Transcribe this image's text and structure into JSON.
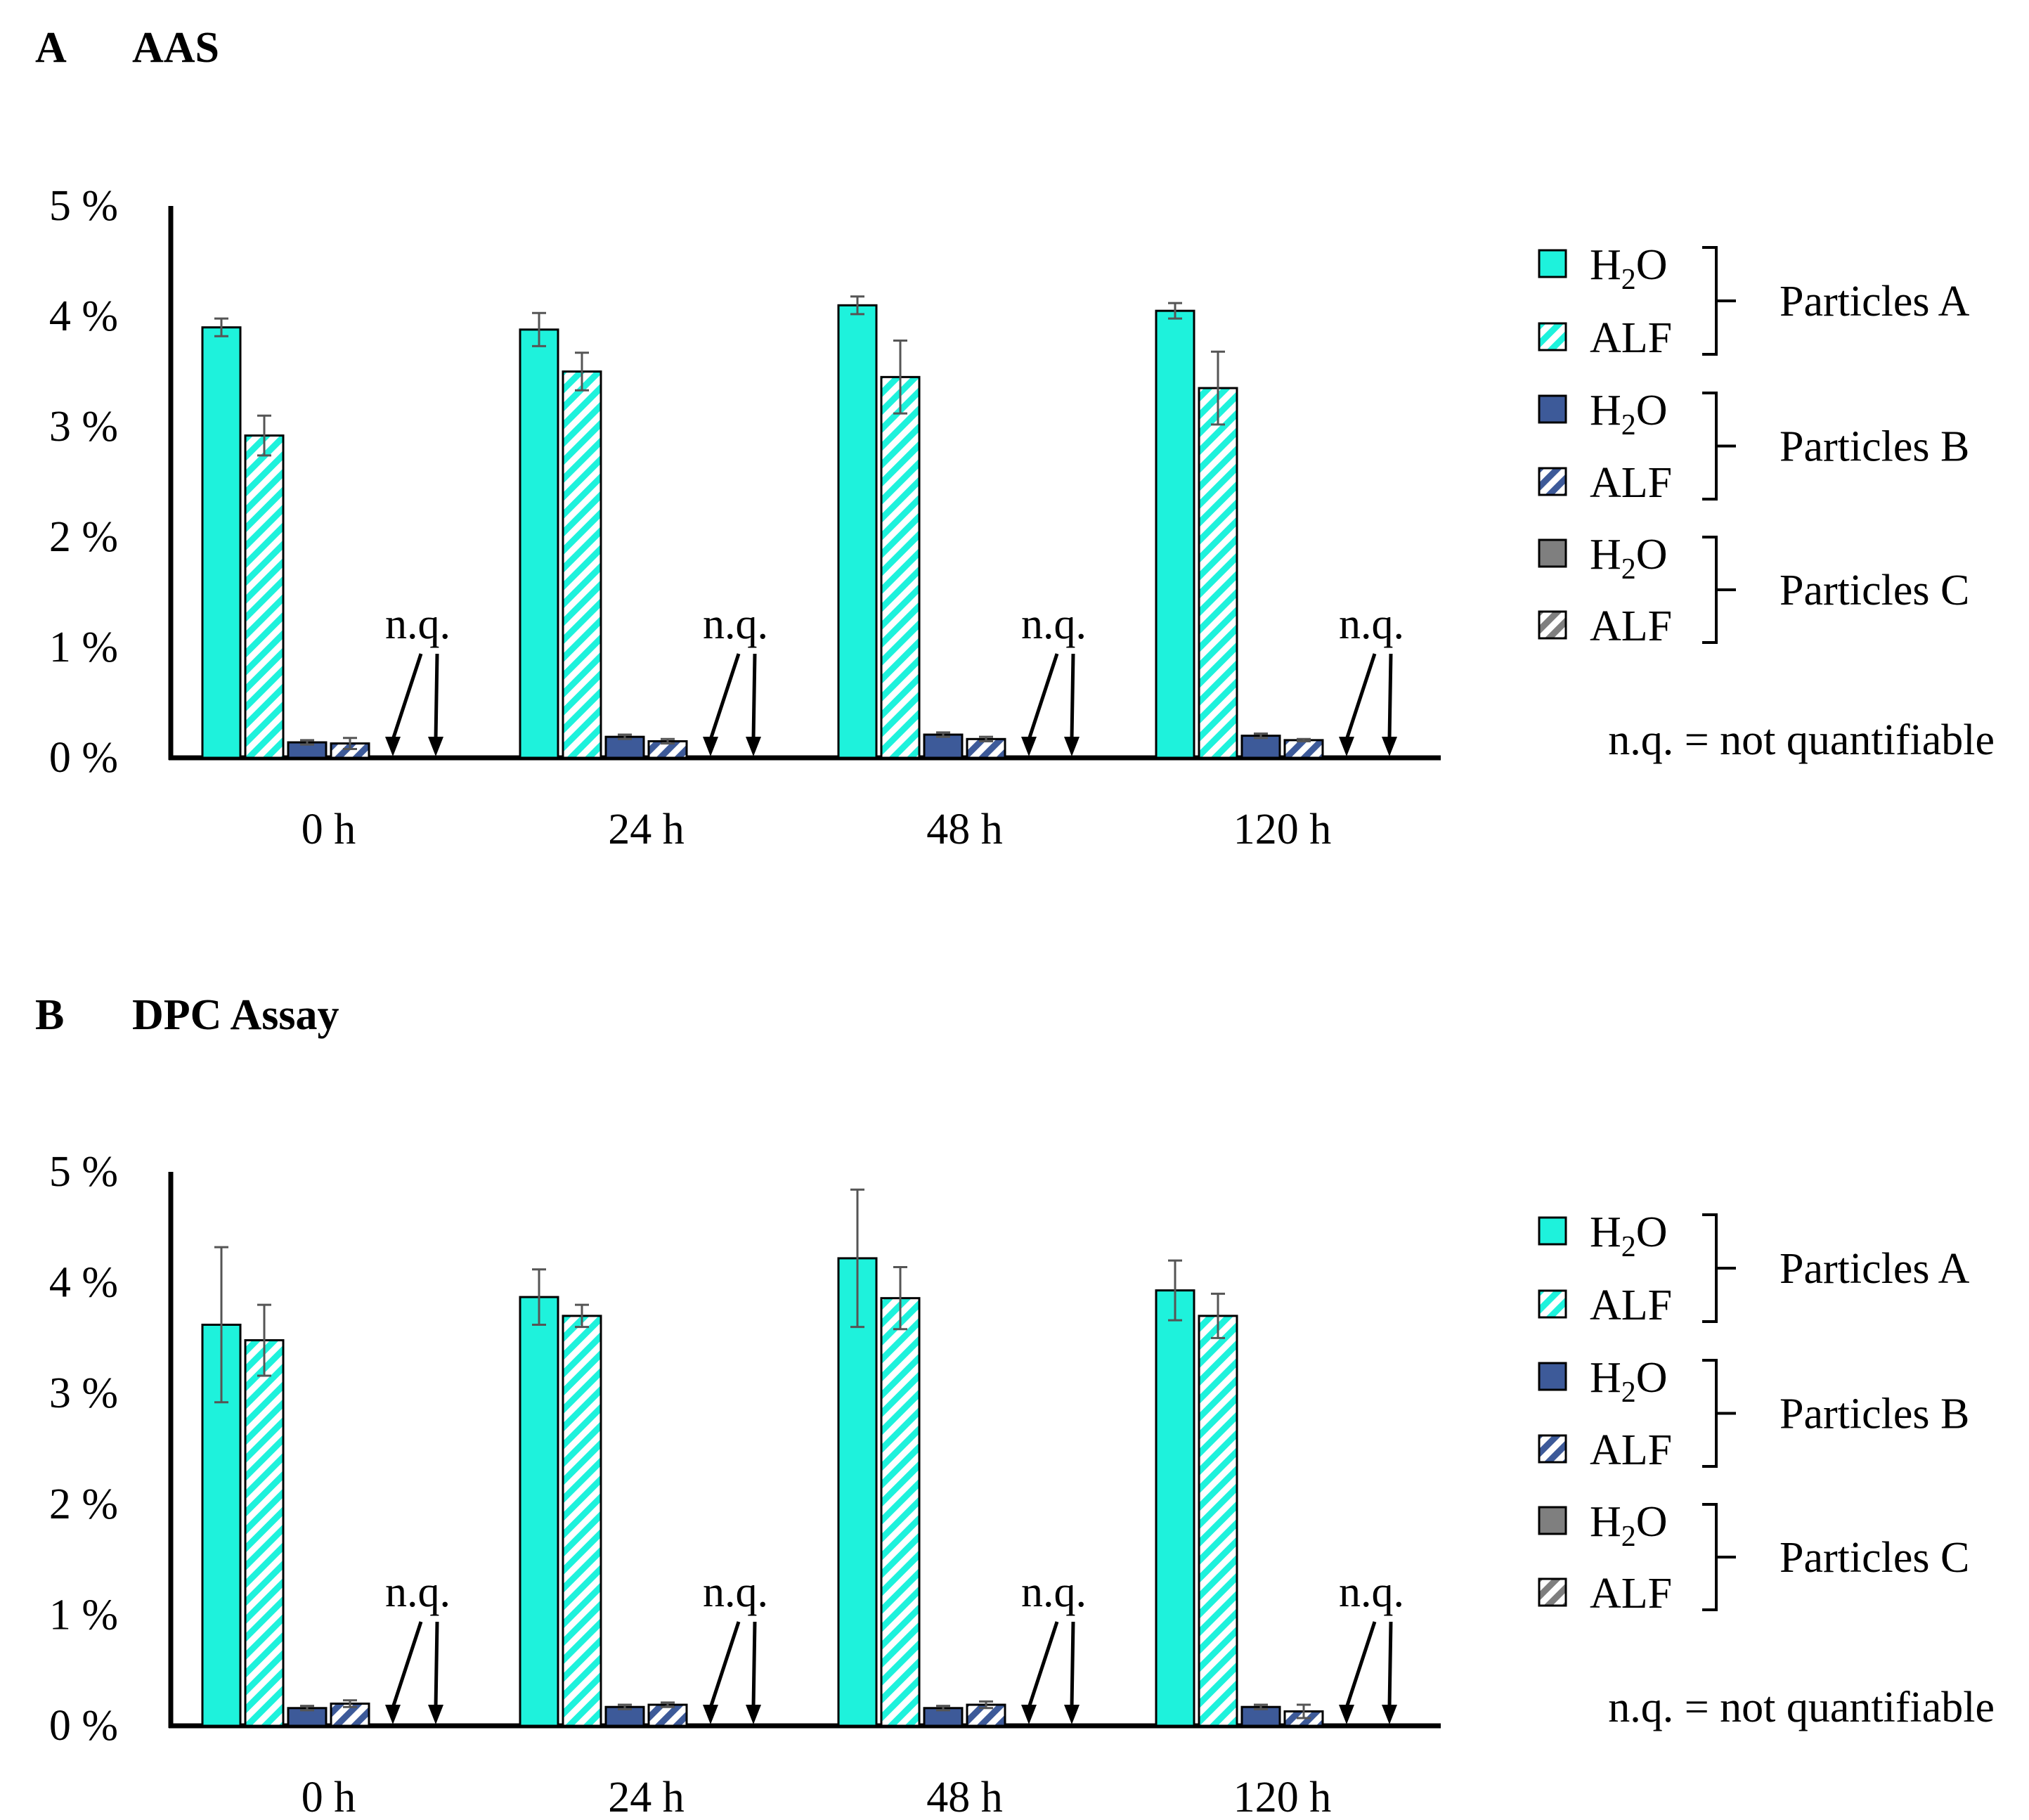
{
  "colors": {
    "particles_a": "#1ef2dc",
    "particles_b": "#3d5a99",
    "particles_c": "#7f7f7f",
    "axis": "#000000",
    "error_bar": "#555555"
  },
  "legend": {
    "items": [
      {
        "label": "H2O",
        "base": "H",
        "sub": "2",
        "tail": "O",
        "pattern": "solid",
        "color_key": "particles_a"
      },
      {
        "label": "ALF",
        "base": "ALF",
        "sub": "",
        "tail": "",
        "pattern": "hatch",
        "color_key": "particles_a"
      },
      {
        "label": "H2O",
        "base": "H",
        "sub": "2",
        "tail": "O",
        "pattern": "solid",
        "color_key": "particles_b"
      },
      {
        "label": "ALF",
        "base": "ALF",
        "sub": "",
        "tail": "",
        "pattern": "hatch",
        "color_key": "particles_b"
      },
      {
        "label": "H2O",
        "base": "H",
        "sub": "2",
        "tail": "O",
        "pattern": "solid",
        "color_key": "particles_c"
      },
      {
        "label": "ALF",
        "base": "ALF",
        "sub": "",
        "tail": "",
        "pattern": "hatch",
        "color_key": "particles_c"
      }
    ],
    "groups": [
      "Particles A",
      "Particles B",
      "Particles C"
    ],
    "note": "n.q. = not quantifiable"
  },
  "chart_data": [
    {
      "type": "bar",
      "panel_letter": "A",
      "title": "AAS",
      "categories": [
        "0 h",
        "24 h",
        "48 h",
        "120 h"
      ],
      "yticks": [
        "0 %",
        "1 %",
        "2 %",
        "3 %",
        "4 %",
        "5 %"
      ],
      "ylim": [
        0,
        5
      ],
      "nq_label": "n.q.",
      "series": [
        {
          "name": "Particles A H2O",
          "color_key": "particles_a",
          "pattern": "solid",
          "values": [
            3.9,
            3.88,
            4.1,
            4.05
          ],
          "errors": [
            0.08,
            0.15,
            0.08,
            0.07
          ]
        },
        {
          "name": "Particles A ALF",
          "color_key": "particles_a",
          "pattern": "hatch",
          "values": [
            2.92,
            3.5,
            3.45,
            3.35
          ],
          "errors": [
            0.18,
            0.17,
            0.33,
            0.33
          ]
        },
        {
          "name": "Particles B H2O",
          "color_key": "particles_b",
          "pattern": "solid",
          "values": [
            0.14,
            0.19,
            0.21,
            0.2
          ],
          "errors": [
            0.02,
            0.02,
            0.02,
            0.02
          ]
        },
        {
          "name": "Particles B ALF",
          "color_key": "particles_b",
          "pattern": "hatch",
          "values": [
            0.13,
            0.15,
            0.17,
            0.16
          ],
          "errors": [
            0.05,
            0.02,
            0.02,
            0.01
          ]
        },
        {
          "name": "Particles C H2O",
          "color_key": "particles_c",
          "pattern": "solid",
          "values": [
            null,
            null,
            null,
            null
          ],
          "errors": [
            null,
            null,
            null,
            null
          ]
        },
        {
          "name": "Particles C ALF",
          "color_key": "particles_c",
          "pattern": "hatch",
          "values": [
            null,
            null,
            null,
            null
          ],
          "errors": [
            null,
            null,
            null,
            null
          ]
        }
      ]
    },
    {
      "type": "bar",
      "panel_letter": "B",
      "title": "DPC Assay",
      "categories": [
        "0 h",
        "24 h",
        "48 h",
        "120 h"
      ],
      "yticks": [
        "0 %",
        "1 %",
        "2 %",
        "3 %",
        "4 %",
        "5 %"
      ],
      "ylim": [
        0,
        5
      ],
      "nq_label": "n.q.",
      "series": [
        {
          "name": "Particles A H2O",
          "color_key": "particles_a",
          "pattern": "solid",
          "values": [
            3.62,
            3.87,
            4.22,
            3.93
          ],
          "errors": [
            0.7,
            0.25,
            0.62,
            0.27
          ]
        },
        {
          "name": "Particles A ALF",
          "color_key": "particles_a",
          "pattern": "hatch",
          "values": [
            3.48,
            3.7,
            3.86,
            3.7
          ],
          "errors": [
            0.32,
            0.1,
            0.28,
            0.2
          ]
        },
        {
          "name": "Particles B H2O",
          "color_key": "particles_b",
          "pattern": "solid",
          "values": [
            0.16,
            0.17,
            0.16,
            0.17
          ],
          "errors": [
            0.02,
            0.02,
            0.02,
            0.02
          ]
        },
        {
          "name": "Particles B ALF",
          "color_key": "particles_b",
          "pattern": "hatch",
          "values": [
            0.2,
            0.19,
            0.19,
            0.13
          ],
          "errors": [
            0.03,
            0.02,
            0.03,
            0.06
          ]
        },
        {
          "name": "Particles C H2O",
          "color_key": "particles_c",
          "pattern": "solid",
          "values": [
            null,
            null,
            null,
            null
          ],
          "errors": [
            null,
            null,
            null,
            null
          ]
        },
        {
          "name": "Particles C ALF",
          "color_key": "particles_c",
          "pattern": "hatch",
          "values": [
            null,
            null,
            null,
            null
          ],
          "errors": [
            null,
            null,
            null,
            null
          ]
        }
      ]
    }
  ]
}
